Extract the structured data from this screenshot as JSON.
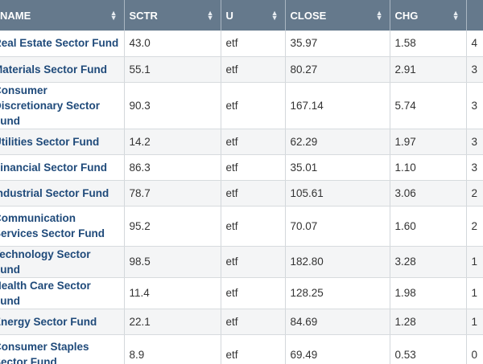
{
  "headers": [
    {
      "label": "NAME"
    },
    {
      "label": "SCTR"
    },
    {
      "label": "U"
    },
    {
      "label": "CLOSE"
    },
    {
      "label": "CHG"
    },
    {
      "label": ""
    }
  ],
  "rows": [
    {
      "name": "Real Estate Sector Fund",
      "sctr": "43.0",
      "u": "etf",
      "close": "35.97",
      "chg": "1.58",
      "extra": "4"
    },
    {
      "name": "Materials Sector Fund",
      "sctr": "55.1",
      "u": "etf",
      "close": "80.27",
      "chg": "2.91",
      "extra": "3"
    },
    {
      "name": "Consumer Discretionary Sector Fund",
      "sctr": "90.3",
      "u": "etf",
      "close": "167.14",
      "chg": "5.74",
      "extra": "3"
    },
    {
      "name": "Utilities Sector Fund",
      "sctr": "14.2",
      "u": "etf",
      "close": "62.29",
      "chg": "1.97",
      "extra": "3"
    },
    {
      "name": "Financial Sector Fund",
      "sctr": "86.3",
      "u": "etf",
      "close": "35.01",
      "chg": "1.10",
      "extra": "3"
    },
    {
      "name": "Industrial Sector Fund",
      "sctr": "78.7",
      "u": "etf",
      "close": "105.61",
      "chg": "3.06",
      "extra": "2"
    },
    {
      "name": "Communication Services Sector Fund",
      "sctr": "95.2",
      "u": "etf",
      "close": "70.07",
      "chg": "1.60",
      "extra": "2"
    },
    {
      "name": "Technology Sector Fund",
      "sctr": "98.5",
      "u": "etf",
      "close": "182.80",
      "chg": "3.28",
      "extra": "1"
    },
    {
      "name": "Health Care Sector Fund",
      "sctr": "11.4",
      "u": "etf",
      "close": "128.25",
      "chg": "1.98",
      "extra": "1"
    },
    {
      "name": "Energy Sector Fund",
      "sctr": "22.1",
      "u": "etf",
      "close": "84.69",
      "chg": "1.28",
      "extra": "1"
    },
    {
      "name": "Consumer Staples Sector Fund",
      "sctr": "8.9",
      "u": "etf",
      "close": "69.49",
      "chg": "0.53",
      "extra": "0"
    }
  ]
}
